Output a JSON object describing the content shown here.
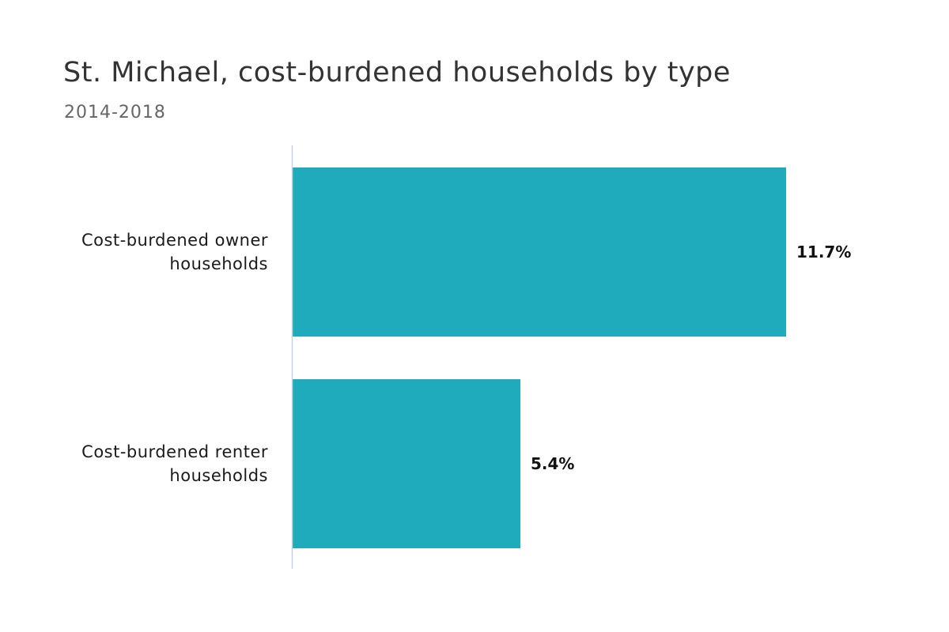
{
  "chart_data": {
    "type": "bar",
    "orientation": "horizontal",
    "title": "St. Michael, cost-burdened households by type",
    "subtitle": "2014-2018",
    "categories": [
      [
        "Cost-burdened owner",
        "households"
      ],
      [
        "Cost-burdened renter",
        "households"
      ]
    ],
    "values": [
      11.7,
      5.4
    ],
    "value_labels": [
      "11.7%",
      "5.4%"
    ],
    "xlim": [
      0,
      13.5
    ],
    "grid": false,
    "legend": "none",
    "colors": {
      "bar": "#20abbc",
      "axis": "#c9d3e0"
    }
  }
}
